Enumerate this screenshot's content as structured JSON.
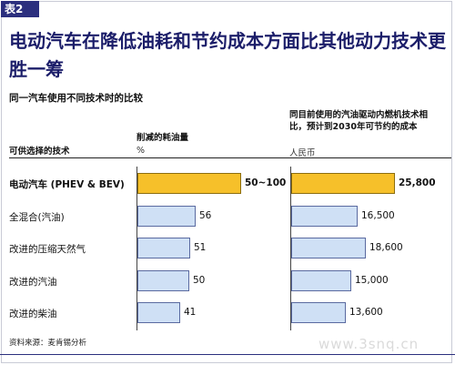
{
  "header": {
    "tag": "表2",
    "title": "电动汽车在降低油耗和节约成本方面比其他动力技术更胜一筹",
    "subtitle": "同一汽车使用不同技术时的比较",
    "left_column": "可供选择的技术",
    "middle_column": "削减的耗油量",
    "middle_unit": "%",
    "right_column": "同目前使用的汽油驱动内燃机技术相比，预计到2030年可节约的成本",
    "right_unit": "人民币"
  },
  "chart_data": {
    "type": "bar",
    "orientation": "horizontal",
    "categories": [
      "电动汽车 (PHEV & BEV)",
      "全混合(汽油)",
      "改进的压缩天然气",
      "改进的汽油",
      "改进的柴油"
    ],
    "highlight_index": 0,
    "colors": {
      "highlight": "#f6c02a",
      "normal": "#cfe0f5",
      "border": "#5a6aa0"
    },
    "series": [
      {
        "name": "削减的耗油量",
        "unit": "%",
        "values": [
          100,
          56,
          51,
          50,
          41
        ],
        "labels": [
          "50~100",
          "56",
          "51",
          "50",
          "41"
        ]
      },
      {
        "name": "可节约的成本",
        "unit": "人民币",
        "values": [
          25800,
          16500,
          18600,
          15000,
          13600
        ],
        "labels": [
          "25,800",
          "16,500",
          "18,600",
          "15,000",
          "13,600"
        ]
      }
    ]
  },
  "footer": {
    "source": "资料来源：麦肯锡分析",
    "watermark": "www.3snq.cn"
  }
}
